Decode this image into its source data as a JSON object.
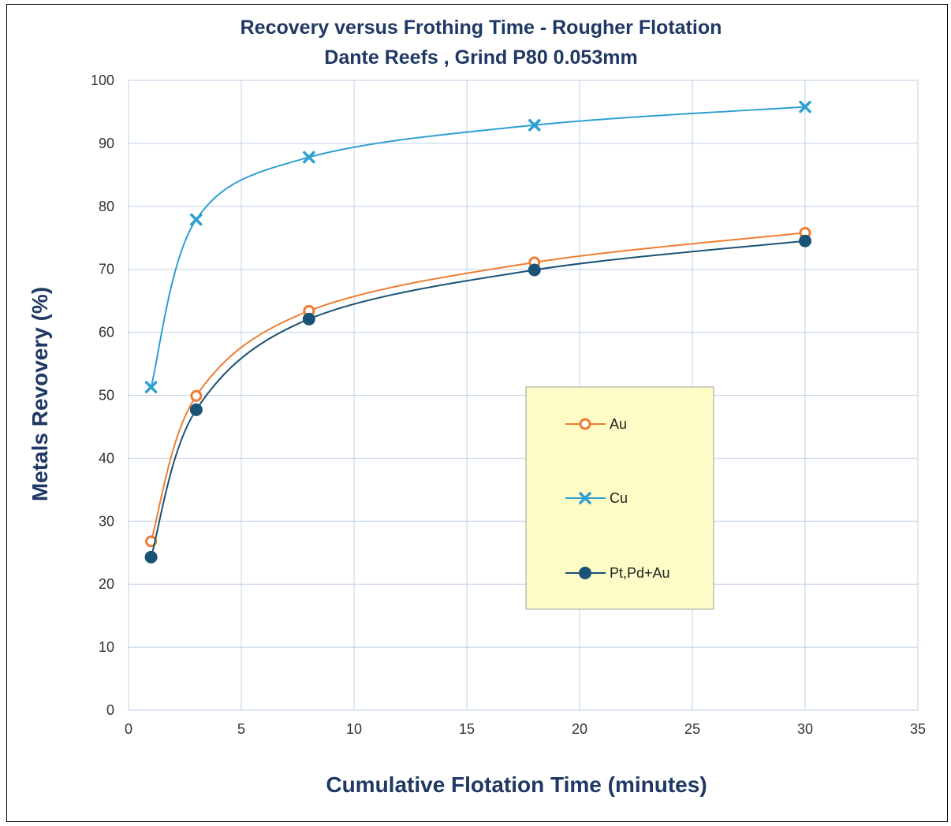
{
  "chart_data": {
    "type": "line",
    "title": "Recovery versus Frothing Time - Rougher Flotation",
    "subtitle": "Dante Reefs , Grind P80 0.053mm",
    "xlabel": "Cumulative Flotation Time (minutes)",
    "ylabel": "Metals Revovery (%)",
    "xlim": [
      0,
      35
    ],
    "ylim": [
      0,
      100
    ],
    "xticks": [
      0,
      5,
      10,
      15,
      20,
      25,
      30,
      35
    ],
    "yticks": [
      0,
      10,
      20,
      30,
      40,
      50,
      60,
      70,
      80,
      90,
      100
    ],
    "grid": true,
    "smooth": true,
    "legend_position": "center-right",
    "series": [
      {
        "name": "Au",
        "color": "#ed7d31",
        "marker": "circle-open",
        "x": [
          1,
          3,
          8,
          18,
          30
        ],
        "y": [
          26.8,
          49.9,
          63.4,
          71.1,
          75.8
        ]
      },
      {
        "name": "Cu",
        "color": "#2e9fd1",
        "marker": "x",
        "x": [
          1,
          3,
          8,
          18,
          30
        ],
        "y": [
          51.3,
          77.9,
          87.8,
          92.9,
          95.8
        ]
      },
      {
        "name": "Pt,Pd+Au",
        "color": "#1a5276",
        "marker": "circle-filled",
        "x": [
          1,
          3,
          8,
          18,
          30
        ],
        "y": [
          24.3,
          47.7,
          62.1,
          69.9,
          74.5
        ]
      }
    ]
  }
}
